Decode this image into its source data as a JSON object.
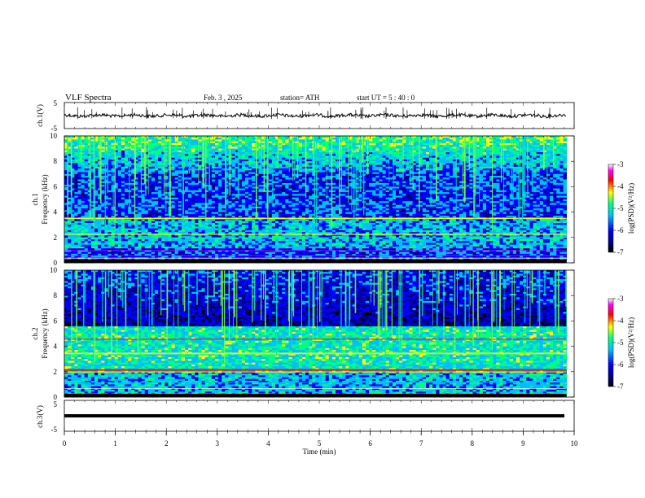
{
  "header": {
    "title": "VLF  Spectra",
    "date": "Feb. 3  , 2025",
    "station": "station= ATH",
    "start": "start  UT  =    5  : 40 : 0"
  },
  "chart_data": {
    "type": "heatmap",
    "x_axis": {
      "label": "Time  (min)",
      "range": [
        0,
        10
      ],
      "ticks": [
        "0",
        "1",
        "2",
        "3",
        "4",
        "5",
        "6",
        "7",
        "8",
        "9",
        "10"
      ],
      "data_end_min": 9.85
    },
    "panels": [
      {
        "id": "ch1-waveform",
        "type": "line",
        "ylabel": "ch.1(V)",
        "yticks": [
          "5",
          "-5"
        ],
        "ylim": [
          -5,
          5
        ]
      },
      {
        "id": "ch1-spectrogram",
        "type": "heatmap",
        "ylabel_top": "ch.1",
        "ylabel": "Frequency  (kHz)",
        "yticks": [
          "0",
          "2",
          "4",
          "6",
          "8",
          "10"
        ],
        "ylim": [
          0,
          10
        ],
        "colorbar": {
          "label": "log(PSD)(V²/Hz)",
          "ticks": [
            "-3",
            "-4",
            "-5",
            "-6",
            "-7"
          ],
          "range": [
            -7,
            -3
          ]
        }
      },
      {
        "id": "ch2-spectrogram",
        "type": "heatmap",
        "ylabel_top": "ch.2",
        "ylabel": "Frequency  (kHz)",
        "yticks": [
          "0",
          "2",
          "4",
          "6",
          "8",
          "10"
        ],
        "ylim": [
          0,
          10
        ],
        "colorbar": {
          "label": "log(PSD)(V²/Hz)",
          "ticks": [
            "-3",
            "-4",
            "-5",
            "-6",
            "-7"
          ],
          "range": [
            -7,
            -3
          ]
        }
      },
      {
        "id": "ch3-waveform",
        "type": "line",
        "ylabel": "ch.3(V)",
        "yticks": [
          "5",
          "-5"
        ],
        "ylim": [
          -5,
          5
        ]
      }
    ],
    "colormap": [
      "#000000",
      "#00008b",
      "#0000ff",
      "#00bfff",
      "#00ff7f",
      "#ffff00",
      "#ff0000",
      "#ff00ff",
      "#ffffff"
    ]
  }
}
